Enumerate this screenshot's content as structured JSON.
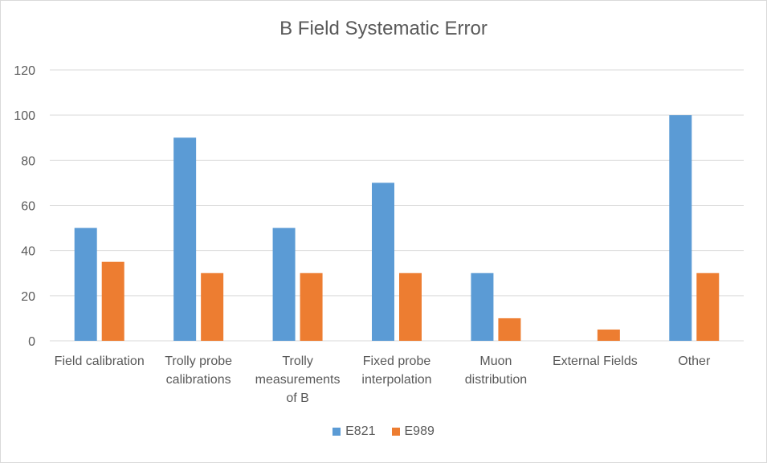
{
  "chart_data": {
    "type": "bar",
    "title": "B Field Systematic Error",
    "categories": [
      [
        "Field calibration"
      ],
      [
        "Trolly probe",
        "calibrations"
      ],
      [
        "Trolly",
        "measurements",
        "of B"
      ],
      [
        "Fixed probe",
        "interpolation"
      ],
      [
        "Muon",
        "distribution"
      ],
      [
        "External Fields"
      ],
      [
        "Other"
      ]
    ],
    "series": [
      {
        "name": "E821",
        "color": "#5b9bd5",
        "values": [
          50,
          90,
          50,
          70,
          30,
          0,
          100
        ]
      },
      {
        "name": "E989",
        "color": "#ed7d31",
        "values": [
          35,
          30,
          30,
          30,
          10,
          5,
          30
        ]
      }
    ],
    "yticks": [
      "0",
      "20",
      "40",
      "60",
      "80",
      "100",
      "120"
    ],
    "ylim": [
      0,
      120
    ],
    "grid": true,
    "legend_position": "bottom"
  }
}
